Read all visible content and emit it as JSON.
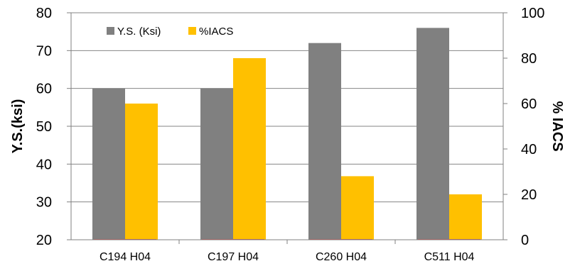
{
  "chart_data": {
    "type": "bar",
    "categories": [
      "C194 H04",
      "C197 H04",
      "C260 H04",
      "C511 H04"
    ],
    "series": [
      {
        "name": "Y.S. (Ksi)",
        "values": [
          60,
          60,
          72,
          76
        ],
        "color": "#808080",
        "axis": "left"
      },
      {
        "name": "%IACS",
        "values": [
          60,
          80,
          28,
          20
        ],
        "color": "#FFC000",
        "axis": "right"
      }
    ],
    "y_left": {
      "label": "Y.S.(ksi)",
      "range": [
        20,
        80
      ],
      "ticks": [
        20,
        30,
        40,
        50,
        60,
        70,
        80
      ]
    },
    "y_right": {
      "label": "% IACS",
      "range": [
        0,
        100
      ],
      "ticks": [
        0,
        20,
        40,
        60,
        80,
        100
      ]
    },
    "grid": true,
    "legend_position": "top-left"
  }
}
